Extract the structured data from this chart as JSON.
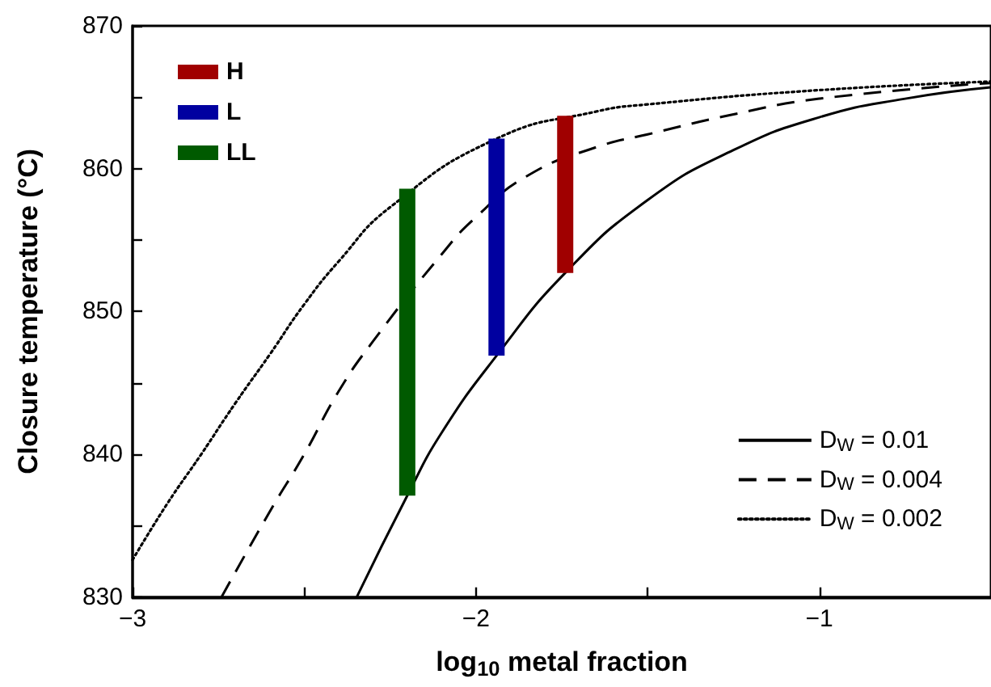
{
  "chart_data": {
    "type": "line",
    "xlabel": "log$_{10}$ metal fraction",
    "ylabel": "Closure temperature (°C)",
    "xlim": [
      -3,
      -0.5
    ],
    "ylim": [
      830,
      870
    ],
    "xticks": [
      {
        "value": -3,
        "label": "−3"
      },
      {
        "value": -2.5,
        "label": null
      },
      {
        "value": -2,
        "label": "−2"
      },
      {
        "value": -1.5,
        "label": null
      },
      {
        "value": -1,
        "label": "−1"
      }
    ],
    "yticks": [
      830,
      {
        "value": 835,
        "label": null
      },
      840,
      {
        "value": 845,
        "label": null
      },
      850,
      {
        "value": 855,
        "label": null
      },
      860,
      {
        "value": 865,
        "label": null
      },
      870
    ],
    "grid": false,
    "legend": [
      "top left",
      "bottom right"
    ],
    "marker": "none",
    "series": [
      {
        "name": "H",
        "type": "bar",
        "color": "#a00000",
        "x": [
          -1.74
        ],
        "base": [
          852.7
        ],
        "values": [
          11.0
        ]
      },
      {
        "name": "L",
        "type": "bar",
        "color": "#0000a0",
        "x": [
          -1.94
        ],
        "base": [
          846.9
        ],
        "values": [
          15.2
        ]
      },
      {
        "name": "LL",
        "type": "bar",
        "color": "#005a00",
        "x": [
          -2.2
        ],
        "base": [
          837.1
        ],
        "values": [
          21.5
        ]
      },
      {
        "name": "D$_{W}$ = 0.01",
        "line_style": "solid",
        "color": "#000000",
        "x": [
          -2.347,
          -2.2,
          -2.1,
          -1.94,
          -1.74,
          -1.5,
          -1.25,
          -1.0,
          -0.75,
          -0.5
        ],
        "values": [
          830,
          837.1,
          841.5,
          846.9,
          852.7,
          857.8,
          861.3,
          863.6,
          864.9,
          865.7
        ]
      },
      {
        "name": "D$_{W}$ = 0.004",
        "line_style": "dashed",
        "color": "#000000",
        "x": [
          -2.741,
          -2.6,
          -2.5,
          -2.4,
          -2.3,
          -2.1,
          -2.0,
          -1.85,
          -1.65,
          -1.5,
          -1.25,
          -1.0,
          -0.5
        ],
        "values": [
          830,
          836,
          840,
          844.4,
          847.9,
          854.0,
          856.6,
          859.5,
          861.5,
          862.4,
          863.8,
          864.9,
          866.0
        ]
      },
      {
        "name": "D$_{W}$ = 0.002",
        "line_style": "dotted",
        "color": "#000000",
        "x": [
          -3,
          -2.9,
          -2.8,
          -2.7,
          -2.6,
          -2.5,
          -2.4,
          -2.25,
          -1.94,
          -1.65,
          -1.5,
          -1.0,
          -0.5
        ],
        "values": [
          832.6,
          836.5,
          840,
          843.6,
          847,
          850.5,
          853.5,
          857.3,
          862.1,
          864.0,
          864.5,
          865.5,
          866.1
        ]
      }
    ]
  }
}
